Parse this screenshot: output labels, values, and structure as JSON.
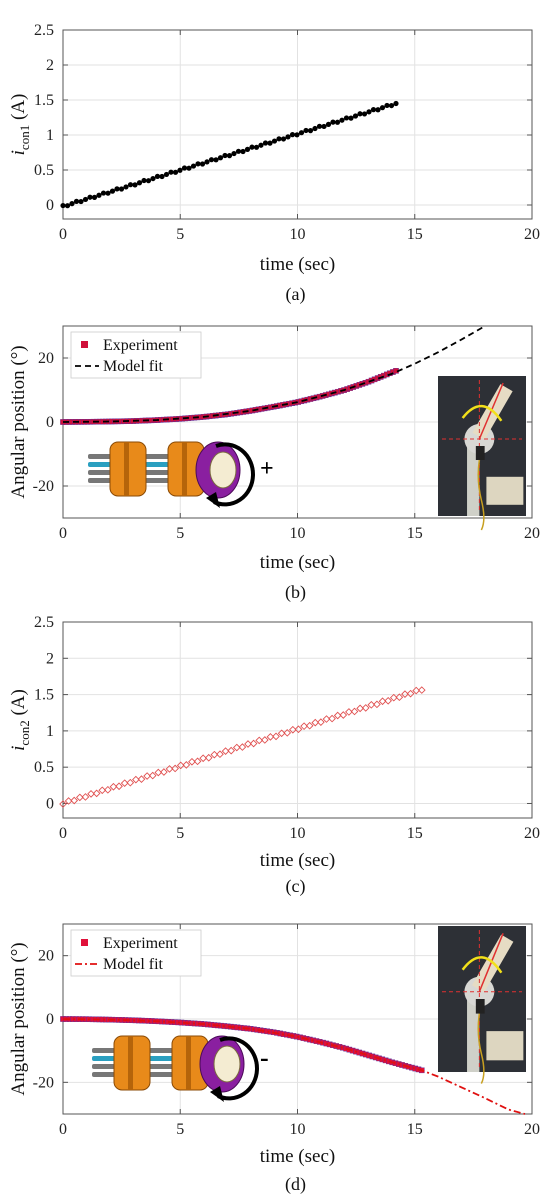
{
  "colors": {
    "series_a": "#000000",
    "series_b_marker": "#d0103a",
    "series_b_fit": "#000000",
    "series_c": "#e05050",
    "series_d_marker": "#e0103a",
    "series_d_fit": "#e01010",
    "actuator_orange": "#e88a1a",
    "actuator_purple": "#8a1fa0",
    "actuator_cyan": "#2a9fc0",
    "arrow_yellow": "#f2e01a"
  },
  "chart_data": [
    {
      "id": "a",
      "type": "scatter",
      "caption": "(a)",
      "xlabel": "time (sec)",
      "ylabel_main": "i",
      "ylabel_sub": "con1",
      "ylabel_unit": " (A)",
      "xlim": [
        0,
        20
      ],
      "ylim": [
        -0.2,
        2.5
      ],
      "xticks": [
        0,
        5,
        10,
        15,
        20
      ],
      "yticks": [
        0,
        0.5,
        1,
        1.5,
        2,
        2.5
      ],
      "ytick_labels": [
        "0",
        "0.5",
        "1",
        "1.5",
        "2",
        "2.5"
      ],
      "grid": true,
      "series": [
        {
          "marker": "dot",
          "x_start": 0,
          "x_end": 14.2,
          "y_start": -0.02,
          "y_end": 1.45,
          "points": 75
        }
      ]
    },
    {
      "id": "b",
      "type": "line",
      "caption": "(b)",
      "xlabel": "time (sec)",
      "ylabel": "Angular position (°)",
      "xlim": [
        0,
        20
      ],
      "ylim": [
        -30,
        30
      ],
      "xticks": [
        0,
        5,
        10,
        15,
        20
      ],
      "yticks": [
        -20,
        0,
        20
      ],
      "ytick_labels": [
        "-20",
        "0",
        "20"
      ],
      "grid": true,
      "legend": {
        "placement": "top-left",
        "items": [
          "Experiment",
          "Model fit"
        ]
      },
      "series": [
        {
          "name": "Experiment",
          "marker": "square",
          "x": [
            0,
            1,
            2,
            3,
            4,
            5,
            6,
            7,
            8,
            9,
            10,
            11,
            12,
            13,
            14.2
          ],
          "y": [
            0,
            0.05,
            0.15,
            0.3,
            0.6,
            1.0,
            1.6,
            2.4,
            3.5,
            4.8,
            6.2,
            8.0,
            10.0,
            12.5,
            16.0
          ]
        },
        {
          "name": "Model fit",
          "style": "dashed",
          "x": [
            0,
            2,
            4,
            6,
            8,
            10,
            12,
            14,
            15,
            16,
            17,
            18
          ],
          "y": [
            0,
            0.15,
            0.6,
            1.6,
            3.5,
            6.2,
            10.0,
            15.0,
            18.2,
            21.8,
            25.8,
            30.0
          ]
        }
      ],
      "annotation": "+"
    },
    {
      "id": "c",
      "type": "scatter",
      "caption": "(c)",
      "xlabel": "time (sec)",
      "ylabel_main": "i",
      "ylabel_sub": "con2",
      "ylabel_unit": " (A)",
      "xlim": [
        0,
        20
      ],
      "ylim": [
        -0.2,
        2.5
      ],
      "xticks": [
        0,
        5,
        10,
        15,
        20
      ],
      "yticks": [
        0,
        0.5,
        1,
        1.5,
        2,
        2.5
      ],
      "ytick_labels": [
        "0",
        "0.5",
        "1",
        "1.5",
        "2",
        "2.5"
      ],
      "grid": true,
      "series": [
        {
          "marker": "diamond-open",
          "x_start": 0,
          "x_end": 15.3,
          "y_start": 0.0,
          "y_end": 1.57,
          "points": 65
        }
      ]
    },
    {
      "id": "d",
      "type": "line",
      "caption": "(d)",
      "xlabel": "time (sec)",
      "ylabel": "Angular position (°)",
      "xlim": [
        0,
        20
      ],
      "ylim": [
        -30,
        30
      ],
      "xticks": [
        0,
        5,
        10,
        15,
        20
      ],
      "yticks": [
        -20,
        0,
        20
      ],
      "ytick_labels": [
        "-20",
        "0",
        "20"
      ],
      "grid": true,
      "legend": {
        "placement": "top-left",
        "items": [
          "Experiment",
          "Model fit"
        ]
      },
      "series": [
        {
          "name": "Experiment",
          "marker": "square",
          "x": [
            0,
            1,
            2,
            3,
            4,
            5,
            6,
            7,
            8,
            9,
            10,
            11,
            12,
            13,
            14,
            15.3
          ],
          "y": [
            0,
            -0.05,
            -0.2,
            -0.4,
            -0.7,
            -1.1,
            -1.6,
            -2.3,
            -3.1,
            -4.2,
            -5.6,
            -7.3,
            -9.2,
            -11.4,
            -13.6,
            -16.2
          ]
        },
        {
          "name": "Model fit",
          "style": "dashdot",
          "x": [
            0,
            2,
            4,
            6,
            8,
            10,
            12,
            14,
            15.3,
            16,
            17,
            18,
            19,
            19.7
          ],
          "y": [
            0,
            -0.2,
            -0.7,
            -1.6,
            -3.1,
            -5.6,
            -9.2,
            -13.6,
            -16.2,
            -18.2,
            -21.6,
            -25.0,
            -28.6,
            -30.0
          ]
        }
      ],
      "annotation": "-"
    }
  ]
}
